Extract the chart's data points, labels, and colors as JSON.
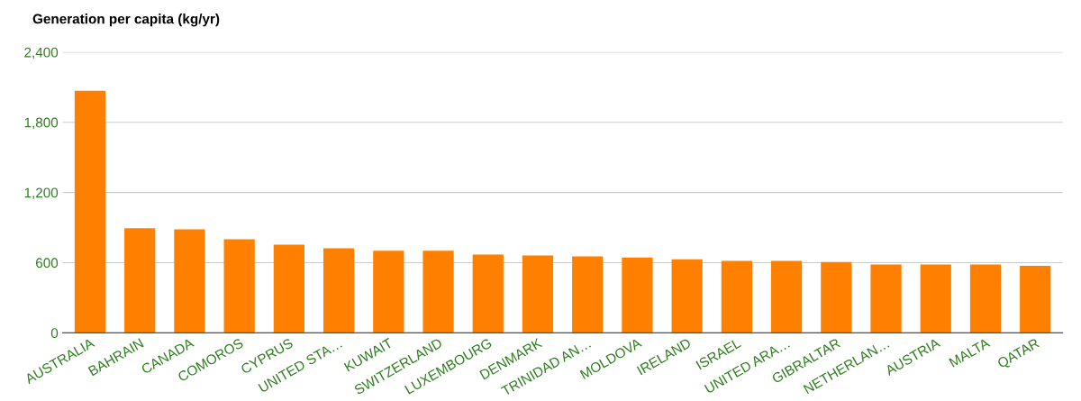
{
  "chart_data": {
    "type": "bar",
    "title": "Generation per capita (kg/yr)",
    "categories": [
      "AUSTRALIA",
      "BAHRAIN",
      "CANADA",
      "COMOROS",
      "CYPRUS",
      "UNITED STA…",
      "KUWAIT",
      "SWITZERLAND",
      "LUXEMBOURG",
      "DENMARK",
      "TRINIDAD AN…",
      "MOLDOVA",
      "IRELAND",
      "ISRAEL",
      "UNITED ARA…",
      "GIBRALTAR",
      "NETHERLAN…",
      "AUSTRIA",
      "MALTA",
      "QATAR"
    ],
    "values": [
      2070,
      894,
      885,
      801,
      754,
      724,
      702,
      702,
      669,
      661,
      653,
      645,
      629,
      615,
      615,
      606,
      585,
      585,
      585,
      573
    ],
    "color": "#ff8000",
    "ylim": [
      0,
      2400
    ],
    "yticks": [
      {
        "value": 0,
        "label": "0"
      },
      {
        "value": 600,
        "label": "600"
      },
      {
        "value": 1200,
        "label": "1,200"
      },
      {
        "value": 1800,
        "label": "1,800"
      },
      {
        "value": 2400,
        "label": "2,400"
      }
    ],
    "grid": "y",
    "legend": false
  }
}
